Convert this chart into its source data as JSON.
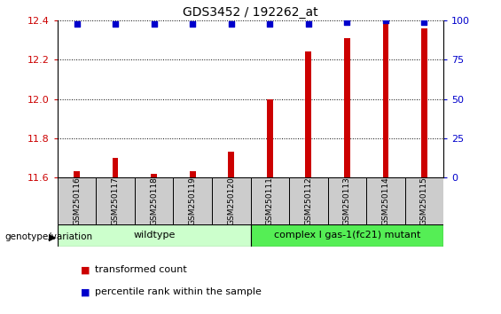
{
  "title": "GDS3452 / 192262_at",
  "samples": [
    "GSM250116",
    "GSM250117",
    "GSM250118",
    "GSM250119",
    "GSM250120",
    "GSM250111",
    "GSM250112",
    "GSM250113",
    "GSM250114",
    "GSM250115"
  ],
  "transformed_counts": [
    11.63,
    11.7,
    11.62,
    11.63,
    11.73,
    12.0,
    12.24,
    12.31,
    12.39,
    12.36
  ],
  "percentile_ranks": [
    98,
    98,
    98,
    98,
    98,
    98,
    98,
    99,
    100,
    99
  ],
  "ylim_left": [
    11.6,
    12.4
  ],
  "ylim_right": [
    0,
    100
  ],
  "yticks_left": [
    11.6,
    11.8,
    12.0,
    12.2,
    12.4
  ],
  "yticks_right": [
    0,
    25,
    50,
    75,
    100
  ],
  "bar_color": "#cc0000",
  "dot_color": "#0000cc",
  "groups": [
    {
      "label": "wildtype",
      "start": 0,
      "end": 5,
      "color": "#ccffcc"
    },
    {
      "label": "complex I gas-1(fc21) mutant",
      "start": 5,
      "end": 10,
      "color": "#55ee55"
    }
  ],
  "group_border_color": "#000000",
  "label_cell_color": "#cccccc",
  "legend_items": [
    {
      "color": "#cc0000",
      "label": "transformed count"
    },
    {
      "color": "#0000cc",
      "label": "percentile rank within the sample"
    }
  ],
  "left_axis_color": "#cc0000",
  "right_axis_color": "#0000cc",
  "title_color": "#000000",
  "genotype_label": "genotype/variation",
  "bg_color": "#ffffff",
  "grid_color": "#000000",
  "bar_width": 0.15
}
